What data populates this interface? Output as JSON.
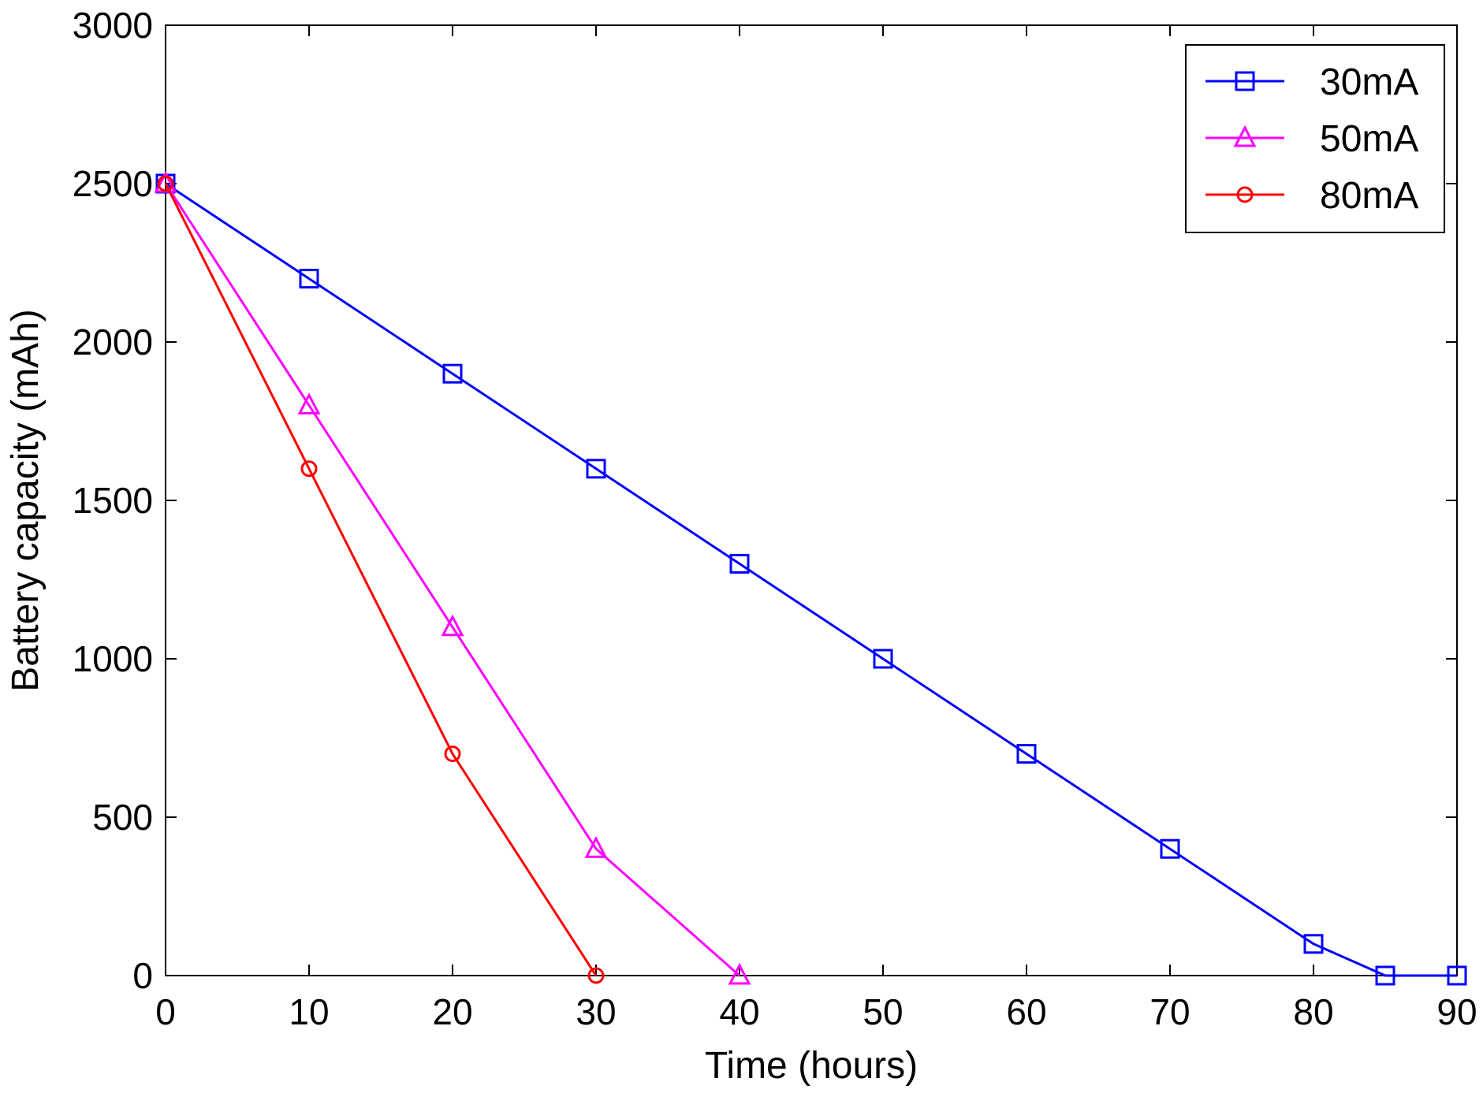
{
  "chart_data": {
    "type": "line",
    "title": "",
    "xlabel": "Time (hours)",
    "ylabel": "Battery capacity (mAh)",
    "xlim": [
      0,
      90
    ],
    "ylim": [
      0,
      3000
    ],
    "xticks": [
      0,
      10,
      20,
      30,
      40,
      50,
      60,
      70,
      80,
      90
    ],
    "yticks": [
      0,
      500,
      1000,
      1500,
      2000,
      2500,
      3000
    ],
    "grid": false,
    "legend_position": "top-right",
    "series": [
      {
        "name": "30mA",
        "color": "#0000ff",
        "marker": "square",
        "x": [
          0,
          10,
          20,
          30,
          40,
          50,
          60,
          70,
          80,
          85,
          90
        ],
        "y": [
          2500,
          2200,
          1900,
          1600,
          1300,
          1000,
          700,
          400,
          100,
          0,
          0
        ]
      },
      {
        "name": "50mA",
        "color": "#ff00ff",
        "marker": "triangle",
        "x": [
          0,
          10,
          20,
          30,
          40
        ],
        "y": [
          2500,
          1800,
          1100,
          400,
          0
        ]
      },
      {
        "name": "80mA",
        "color": "#ff0000",
        "marker": "circle",
        "x": [
          0,
          10,
          20,
          30
        ],
        "y": [
          2500,
          1600,
          700,
          0
        ]
      }
    ]
  }
}
